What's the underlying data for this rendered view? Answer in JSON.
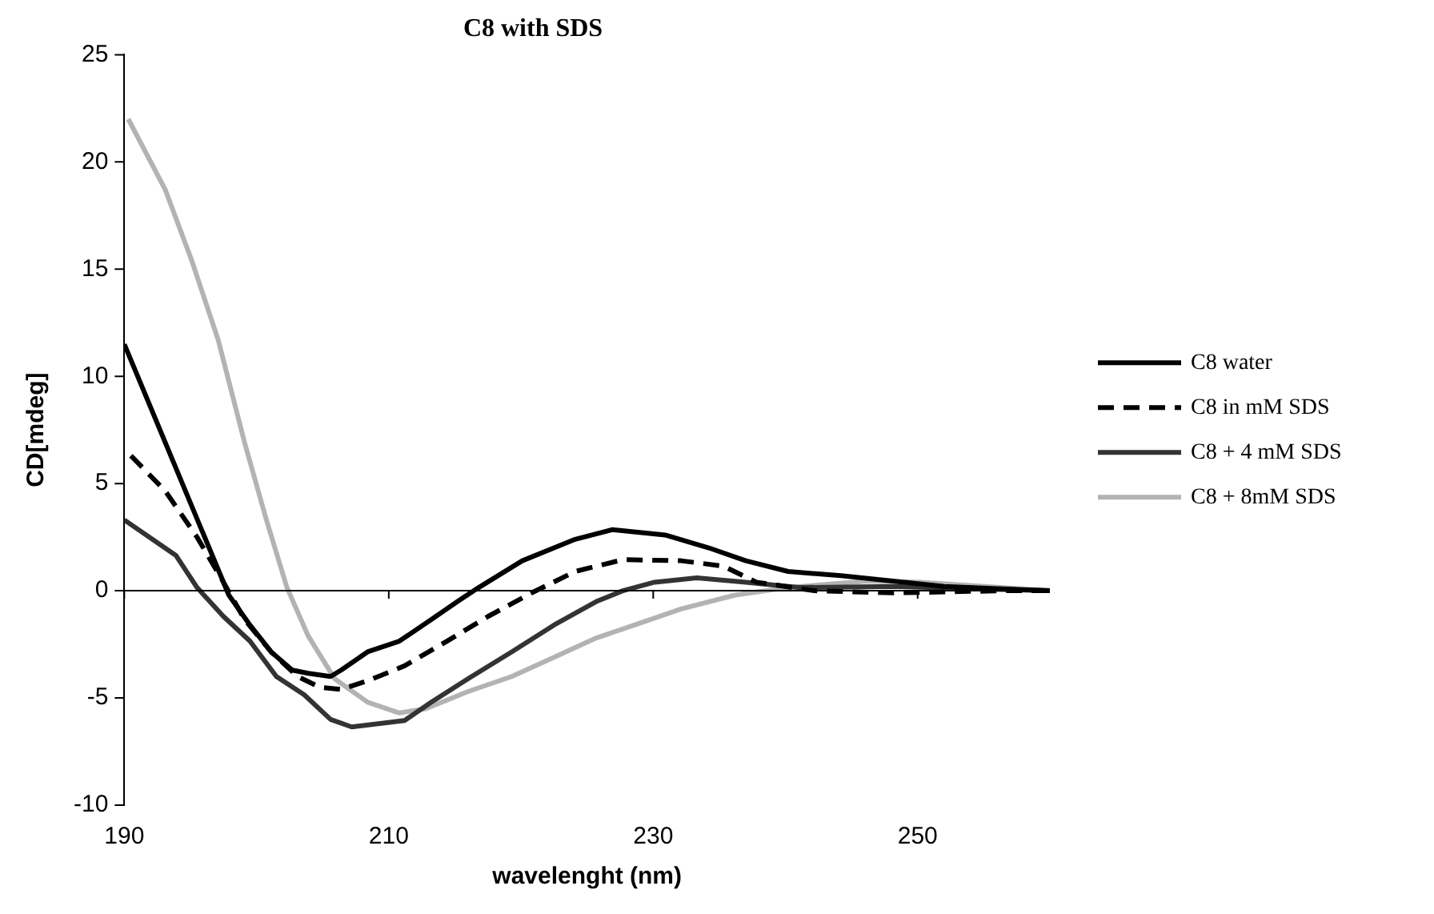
{
  "chart_data": {
    "type": "line",
    "title": "C8 with SDS",
    "xlabel": "wavelenght (nm)",
    "ylabel": "CD[mdeg]",
    "xlim": [
      190,
      260
    ],
    "xticks": [
      190,
      210,
      230,
      250
    ],
    "ylim": [
      -10,
      25
    ],
    "yticks": [
      -10,
      -5,
      0,
      5,
      10,
      15,
      20,
      25
    ],
    "grid": false,
    "legend": "right",
    "ref_lines": [
      {
        "axis": "y",
        "value": 0,
        "color": "#000000"
      }
    ],
    "marker": "none",
    "line_style": "solid",
    "series": [
      {
        "name": "C8 water",
        "color": "#000000",
        "x": [
          190,
          197.9,
          199.5,
          201.1,
          202.7,
          203.9,
          205.6,
          206.4,
          208.4,
          210.8,
          213.2,
          215.2,
          216.8,
          220.1,
          224.1,
          226.9,
          230.9,
          234.2,
          237,
          240.2,
          244.2,
          247.4,
          252,
          256,
          260
        ],
        "values": [
          11.5,
          -0.2,
          -1.6,
          -2.85,
          -3.7,
          -3.85,
          -4.0,
          -3.7,
          -2.85,
          -2.35,
          -1.35,
          -0.5,
          0.15,
          1.4,
          2.4,
          2.85,
          2.6,
          2.0,
          1.4,
          0.9,
          0.7,
          0.5,
          0.2,
          0.1,
          0
        ]
      },
      {
        "name": "C8 in mM SDS",
        "color": "#000000",
        "line_style": "dashed",
        "x": [
          190.5,
          193.1,
          195.5,
          197.5,
          199.1,
          201.1,
          203.1,
          204.8,
          206.4,
          208.4,
          211.2,
          214.4,
          217.5,
          220.8,
          224.1,
          227.7,
          232.1,
          235.3,
          237.8,
          242.2,
          248.2,
          256.3,
          260
        ],
        "values": [
          6.3,
          4.65,
          2.5,
          0.4,
          -1.35,
          -2.85,
          -4.0,
          -4.5,
          -4.6,
          -4.2,
          -3.5,
          -2.35,
          -1.2,
          -0.1,
          0.9,
          1.45,
          1.4,
          1.15,
          0.4,
          0,
          -0.1,
          0,
          0
        ]
      },
      {
        "name": "C8 + 4 mM SDS",
        "color": "#333333",
        "x": [
          190,
          193.9,
          195.5,
          197.5,
          199.5,
          201.5,
          203.6,
          205.6,
          207.2,
          209.2,
          211.2,
          213.2,
          216,
          219.3,
          222.5,
          225.7,
          227.7,
          230.1,
          233.3,
          237,
          241,
          248.2,
          254,
          260
        ],
        "values": [
          3.3,
          1.65,
          0.15,
          -1.2,
          -2.35,
          -4.0,
          -4.85,
          -6.0,
          -6.35,
          -6.2,
          -6.05,
          -5.2,
          -4.1,
          -2.85,
          -1.6,
          -0.5,
          0,
          0.4,
          0.6,
          0.4,
          0.15,
          0.2,
          0.1,
          0
        ]
      },
      {
        "name": "C8 + 8mM SDS",
        "color": "#b3b3b3",
        "x": [
          190.3,
          193.1,
          195.1,
          197.1,
          199.1,
          200.7,
          202.3,
          203.9,
          205.9,
          208.4,
          210.8,
          212.8,
          216,
          219.3,
          222.5,
          225.7,
          228.1,
          232.1,
          236.2,
          240.2,
          246.2,
          250.2,
          256.3,
          260
        ],
        "values": [
          22.0,
          18.7,
          15.4,
          11.7,
          6.9,
          3.4,
          0.15,
          -2.1,
          -4.1,
          -5.2,
          -5.7,
          -5.5,
          -4.7,
          -4.0,
          -3.1,
          -2.2,
          -1.7,
          -0.85,
          -0.2,
          0.15,
          0.45,
          0.4,
          0.15,
          0
        ]
      }
    ]
  }
}
